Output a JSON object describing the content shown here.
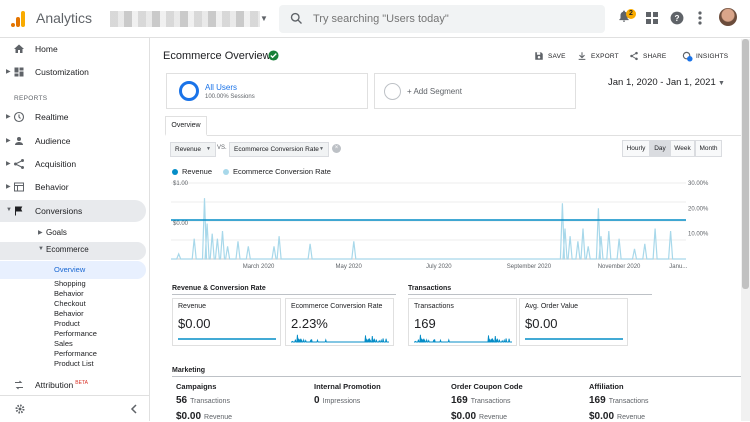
{
  "app": {
    "title": "Analytics"
  },
  "search": {
    "placeholder": "Try searching \"Users today\""
  },
  "notifications": {
    "count": "2"
  },
  "sidebar": {
    "home": "Home",
    "customization": "Customization",
    "reports_header": "REPORTS",
    "realtime": "Realtime",
    "audience": "Audience",
    "acquisition": "Acquisition",
    "behavior": "Behavior",
    "conversions": "Conversions",
    "goals": "Goals",
    "ecommerce": "Ecommerce",
    "overview": "Overview",
    "leaves": [
      "Shopping",
      "Behavior",
      "Checkout",
      "Behavior",
      "Product",
      "Performance",
      "Sales",
      "Performance",
      "Product List"
    ],
    "attribution": "Attribution",
    "beta": "BETA"
  },
  "header": {
    "title": "Ecommerce Overview",
    "save": "SAVE",
    "export": "EXPORT",
    "share": "SHARE",
    "insights": "INSIGHTS",
    "insights_badge": "4"
  },
  "segments": {
    "all_users": "All Users",
    "all_users_sub": "100.00% Sessions",
    "add": "+ Add Segment"
  },
  "date_range": "Jan 1, 2020 - Jan 1, 2021",
  "tabs": {
    "overview": "Overview"
  },
  "controls": {
    "metric1": "Revenue",
    "vs": "VS.",
    "metric2": "Ecommerce Conversion Rate",
    "granularity": [
      "Hourly",
      "Day",
      "Week",
      "Month"
    ],
    "selected": "Day"
  },
  "colors": {
    "revenue": "#058dc7",
    "conversion": "#a8d8ea",
    "accent": "#1a73e8"
  },
  "chart_data": {
    "type": "line",
    "legend": [
      "Revenue",
      "Ecommerce Conversion Rate"
    ],
    "x_ticks": [
      "March 2020",
      "May 2020",
      "July 2020",
      "September 2020",
      "November 2020",
      "Janu..."
    ],
    "y_left_ticks": [
      "$1.00",
      "$0.00"
    ],
    "y_right_ticks": [
      "30.00%",
      "20.00%",
      "10.00%"
    ],
    "series": [
      {
        "name": "Revenue",
        "values": [
          0,
          0
        ]
      },
      {
        "name": "Ecommerce Conversion Rate",
        "spikes": [
          [
            0.015,
            0.02
          ],
          [
            0.045,
            0.08
          ],
          [
            0.065,
            0.24
          ],
          [
            0.07,
            0.14
          ],
          [
            0.08,
            0.1
          ],
          [
            0.09,
            0.08
          ],
          [
            0.1,
            0.11
          ],
          [
            0.11,
            0.05
          ],
          [
            0.13,
            0.07
          ],
          [
            0.15,
            0.05
          ],
          [
            0.2,
            0.05
          ],
          [
            0.21,
            0.09
          ],
          [
            0.27,
            0.06
          ],
          [
            0.355,
            0.07
          ],
          [
            0.76,
            0.22
          ],
          [
            0.765,
            0.12
          ],
          [
            0.775,
            0.09
          ],
          [
            0.79,
            0.07
          ],
          [
            0.8,
            0.12
          ],
          [
            0.81,
            0.05
          ],
          [
            0.83,
            0.2
          ],
          [
            0.835,
            0.09
          ],
          [
            0.85,
            0.11
          ],
          [
            0.87,
            0.08
          ],
          [
            0.9,
            0.04
          ],
          [
            0.92,
            0.06
          ],
          [
            0.94,
            0.12
          ],
          [
            0.97,
            0.11
          ]
        ]
      }
    ]
  },
  "sections": {
    "revenue_conversion": "Revenue & Conversion Rate",
    "transactions": "Transactions",
    "marketing": "Marketing"
  },
  "kpis": [
    {
      "name": "Revenue",
      "value": "$0.00"
    },
    {
      "name": "Ecommerce Conversion Rate",
      "value": "2.23%"
    },
    {
      "name": "Transactions",
      "value": "169"
    },
    {
      "name": "Avg. Order Value",
      "value": "$0.00"
    }
  ],
  "marketing": [
    {
      "head": "Campaigns",
      "v1": "56",
      "l1": "Transactions",
      "v2": "$0.00",
      "l2": "Revenue"
    },
    {
      "head": "Internal Promotion",
      "v1": "0",
      "l1": "Impressions"
    },
    {
      "head": "Order Coupon Code",
      "v1": "169",
      "l1": "Transactions",
      "v2": "$0.00",
      "l2": "Revenue"
    },
    {
      "head": "Affiliation",
      "v1": "169",
      "l1": "Transactions",
      "v2": "$0.00",
      "l2": "Revenue"
    }
  ]
}
